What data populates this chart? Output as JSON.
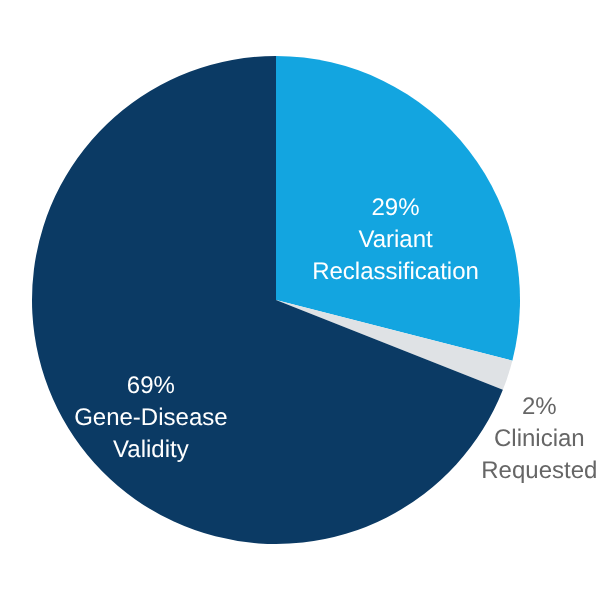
{
  "chart_data": {
    "type": "pie",
    "categories": [
      "Variant Reclassification",
      "Clinician Requested",
      "Gene-Disease Validity"
    ],
    "values": [
      29,
      2,
      69
    ],
    "value_labels": [
      "29%",
      "2%",
      "69%"
    ],
    "colors": [
      "#13a5e0",
      "#dfe2e5",
      "#0b3a64"
    ]
  }
}
